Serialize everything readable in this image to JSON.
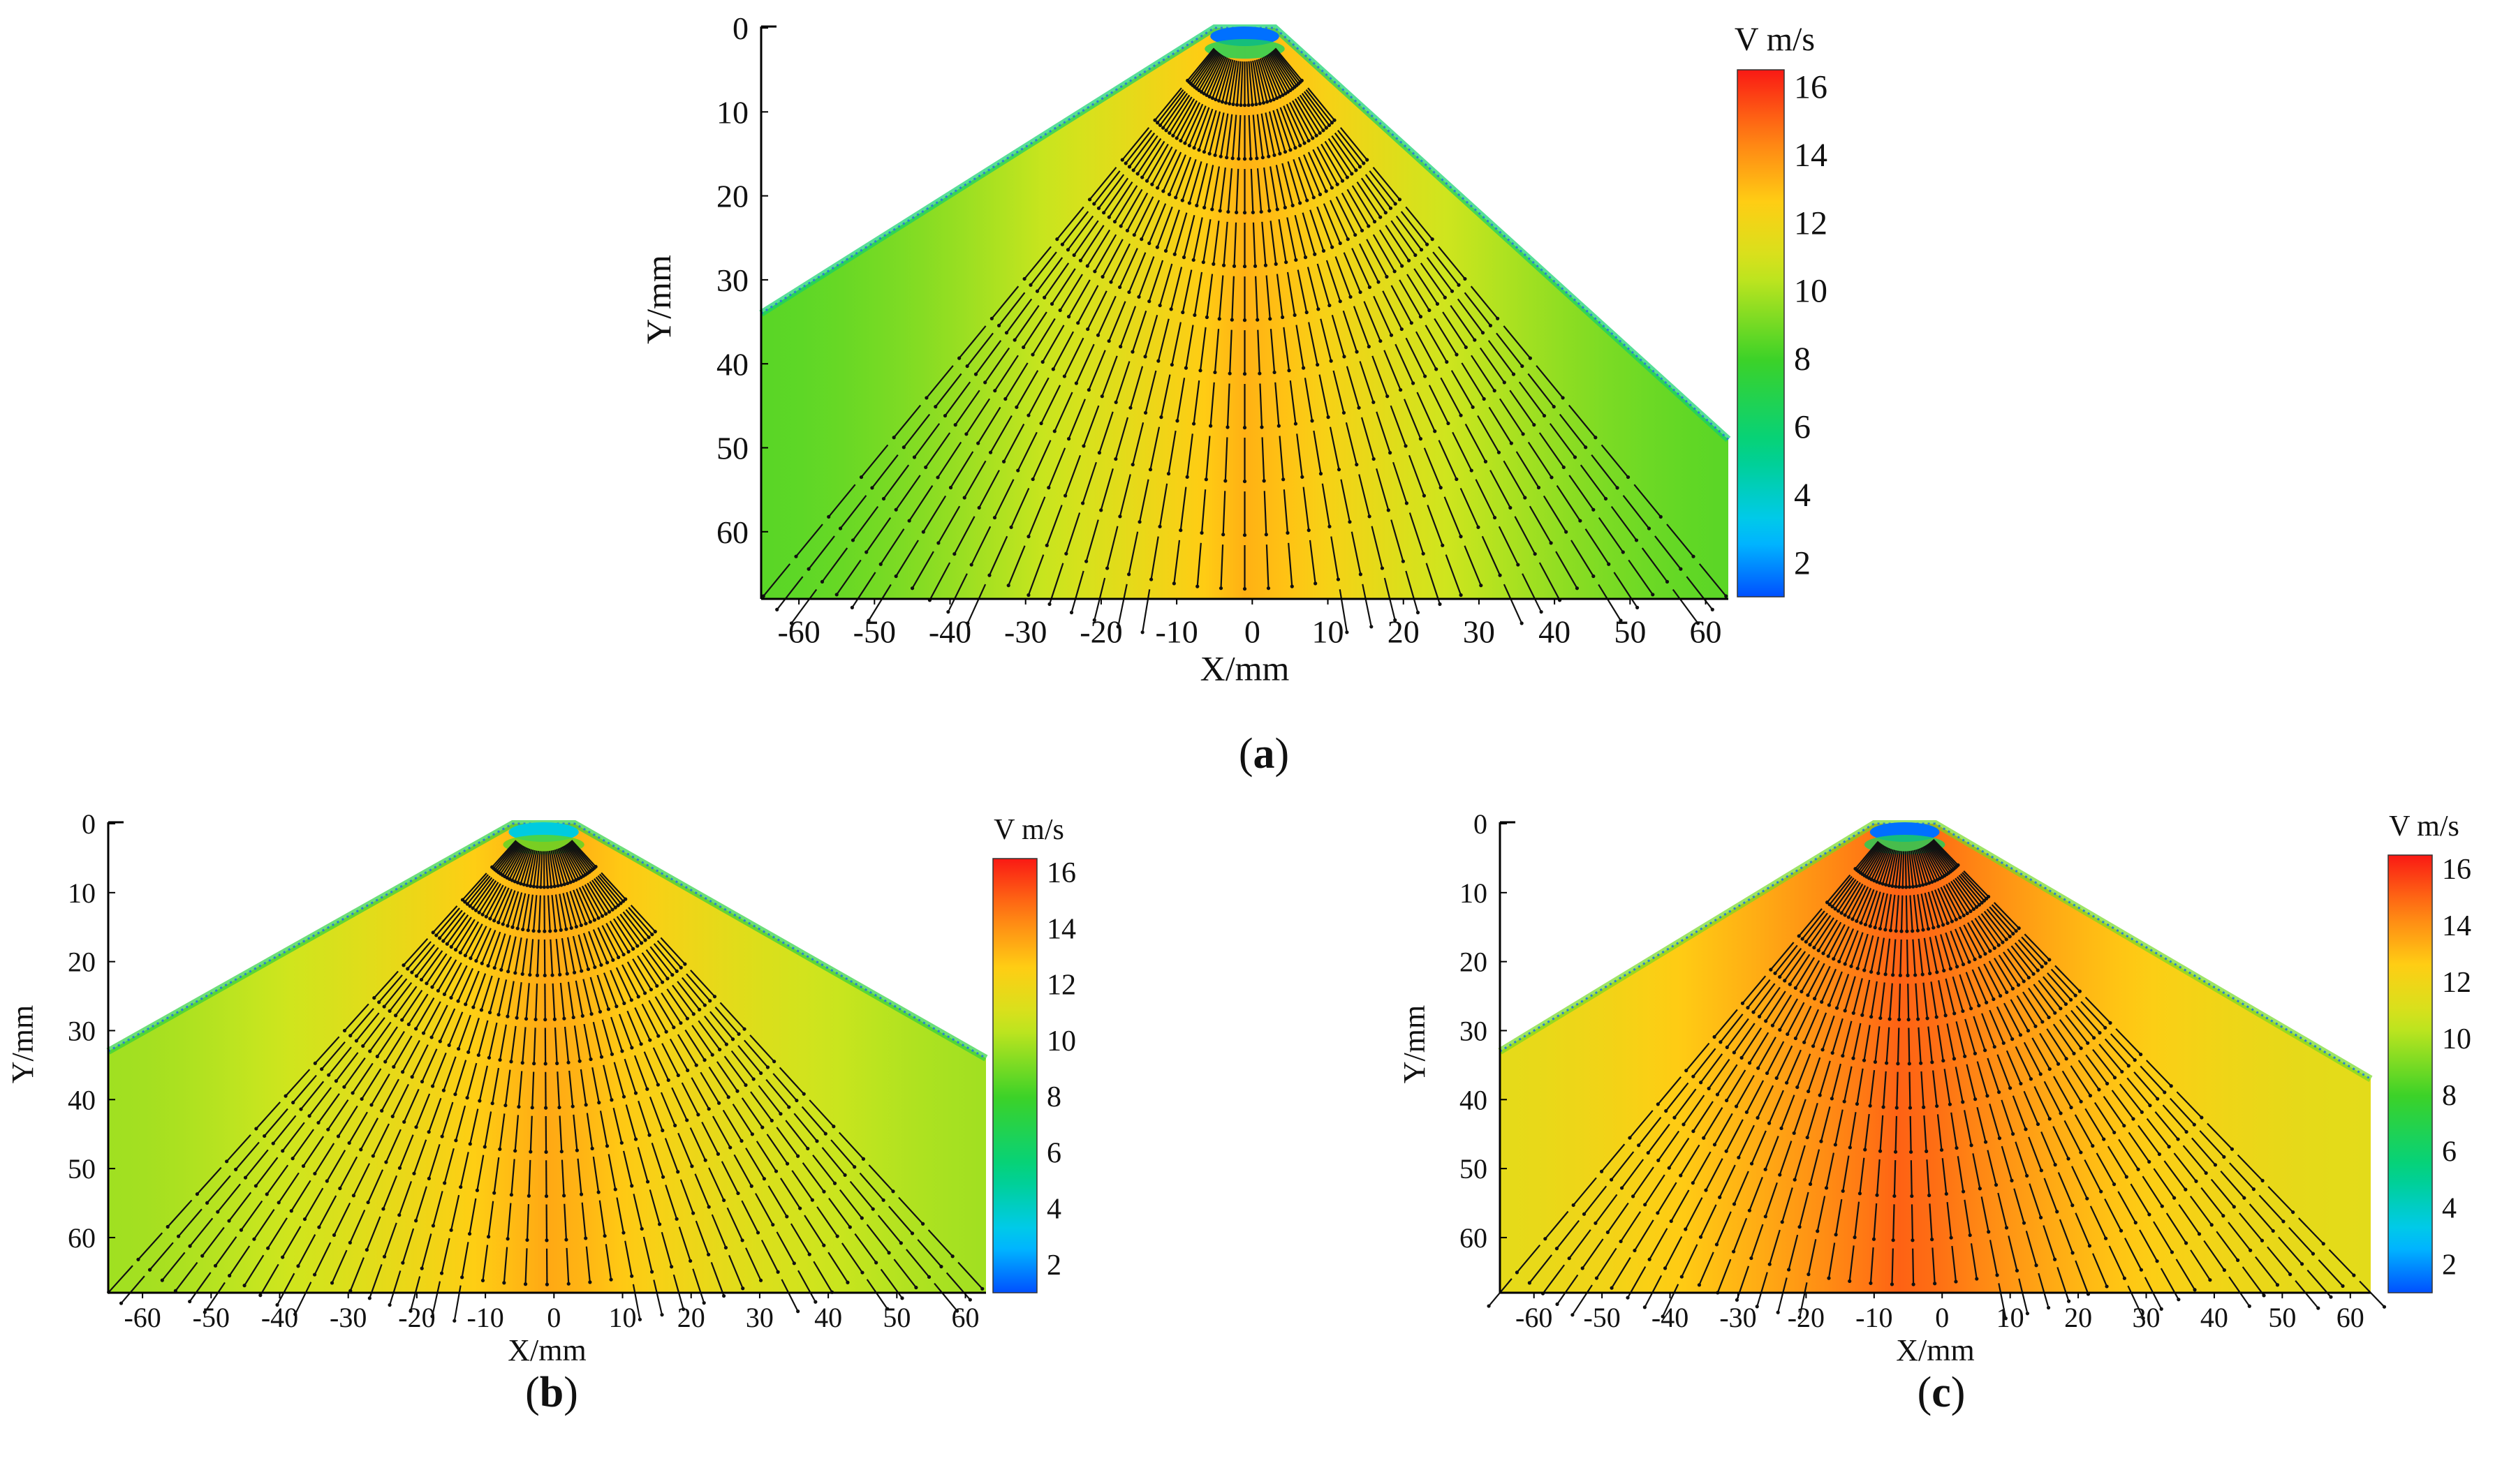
{
  "chart_data": [
    {
      "type": "vector-field contour",
      "panel_label": "a",
      "caption_open": "(",
      "caption_close": ")",
      "xlabel": "X/mm",
      "ylabel": "Y/mm",
      "xlim": [
        -65,
        63
      ],
      "ylim": [
        0,
        68
      ],
      "y_inverted": true,
      "x_ticks": [
        -60,
        -50,
        -40,
        -30,
        -20,
        -10,
        0,
        10,
        20,
        30,
        40,
        50,
        60
      ],
      "y_ticks": [
        0,
        10,
        20,
        30,
        40,
        50,
        60
      ],
      "spray_outline": [
        [
          -65,
          34
        ],
        [
          -5,
          0
        ],
        [
          3,
          0
        ],
        [
          63,
          49
        ]
      ],
      "velocity_profile": {
        "axis_x": 0,
        "core_speed": 13.4,
        "edge_speed": 8.5,
        "nozzle_speed": 1.5
      },
      "colorbar": {
        "title": "V m/s",
        "min": 1,
        "max": 16.5,
        "ticks": [
          2,
          4,
          6,
          8,
          10,
          12,
          14,
          16
        ]
      }
    },
    {
      "type": "vector-field contour",
      "panel_label": "b",
      "caption_open": "(",
      "caption_close": ")",
      "xlabel": "X/mm",
      "ylabel": "Y/mm",
      "xlim": [
        -65,
        63
      ],
      "ylim": [
        0,
        68
      ],
      "y_inverted": true,
      "x_ticks": [
        -60,
        -50,
        -40,
        -30,
        -20,
        -10,
        0,
        10,
        20,
        30,
        40,
        50,
        60
      ],
      "y_ticks": [
        0,
        10,
        20,
        30,
        40,
        50,
        60
      ],
      "spray_outline": [
        [
          -65,
          33
        ],
        [
          -6,
          0
        ],
        [
          3,
          0
        ],
        [
          63,
          34
        ]
      ],
      "velocity_profile": {
        "axis_x": 0,
        "core_speed": 13.6,
        "edge_speed": 9.8,
        "nozzle_speed": 3.5
      },
      "colorbar": {
        "title": "V m/s",
        "min": 1,
        "max": 16.5,
        "ticks": [
          2,
          4,
          6,
          8,
          10,
          12,
          14,
          16
        ]
      }
    },
    {
      "type": "vector-field contour",
      "panel_label": "c",
      "caption_open": "(",
      "caption_close": ")",
      "xlabel": "X/mm",
      "ylabel": "Y/mm",
      "xlim": [
        -65,
        63
      ],
      "ylim": [
        0,
        68
      ],
      "y_inverted": true,
      "x_ticks": [
        -60,
        -50,
        -40,
        -30,
        -20,
        -10,
        0,
        10,
        20,
        30,
        40,
        50,
        60
      ],
      "y_ticks": [
        0,
        10,
        20,
        30,
        40,
        50,
        60
      ],
      "spray_outline": [
        [
          -65,
          33
        ],
        [
          -10,
          0
        ],
        [
          -1,
          0
        ],
        [
          63,
          37
        ]
      ],
      "velocity_profile": {
        "axis_x": -5,
        "core_speed": 15.2,
        "edge_speed": 11.5,
        "nozzle_speed": 1.5
      },
      "colorbar": {
        "title": "V m/s",
        "min": 1,
        "max": 16.5,
        "ticks": [
          2,
          4,
          6,
          8,
          10,
          12,
          14,
          16
        ]
      }
    }
  ]
}
